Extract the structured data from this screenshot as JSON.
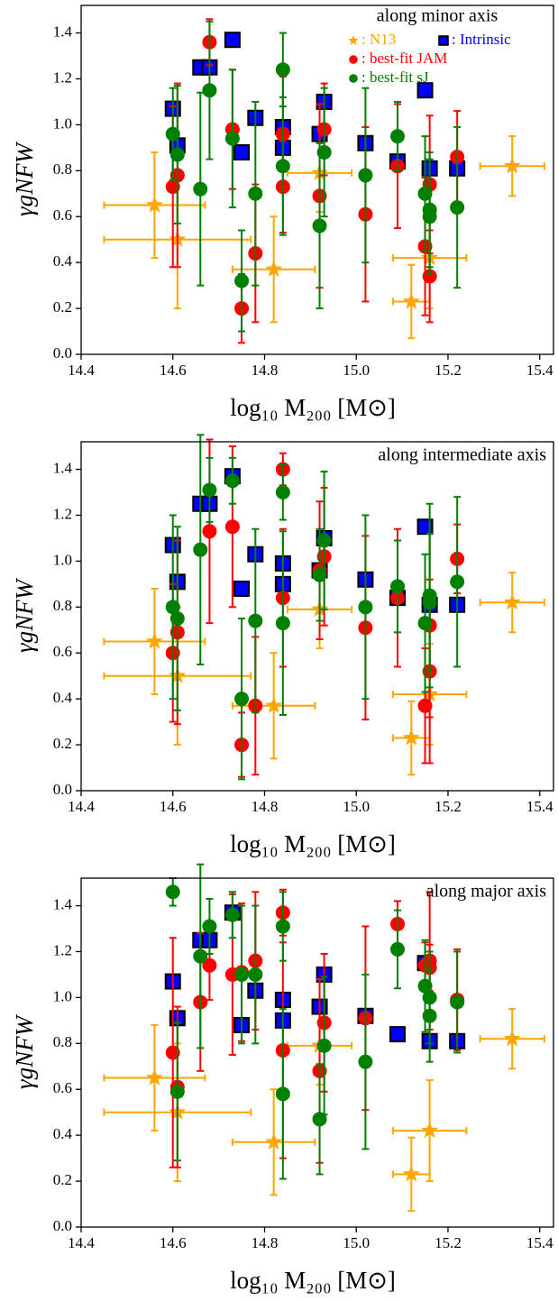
{
  "chart_data": [
    {
      "type": "scatter",
      "annotation": "along minor axis",
      "xlabel": "log₁₀ M₂₀₀ [M⊙]",
      "ylabel": "γgNFW",
      "xlim": [
        14.4,
        15.43
      ],
      "ylim": [
        0,
        1.52
      ],
      "xticks": [
        14.4,
        14.6,
        14.8,
        {
          "value": 15,
          "label": "15.0"
        },
        15.2,
        15.4
      ],
      "yticks": [
        {
          "value": 0,
          "label": "0.0"
        },
        0.2,
        0.4,
        0.6,
        0.8,
        {
          "value": 1,
          "label": "1.0"
        },
        1.2,
        1.4
      ],
      "legend": "upper right",
      "series": [
        {
          "name": ": N13",
          "color": "#ffa500",
          "marker": "star",
          "x": [
            14.56,
            14.61,
            14.82,
            14.92,
            15.12,
            15.16,
            15.34
          ],
          "values": [
            0.65,
            0.5,
            0.37,
            0.79,
            0.23,
            0.42,
            0.82
          ],
          "xerr": [
            0.11,
            0.16,
            0.09,
            0.07,
            0.04,
            0.08,
            0.07
          ],
          "yerr": [
            0.23,
            0.3,
            0.23,
            0.17,
            0.16,
            0.22,
            0.13
          ]
        },
        {
          "name": ": Intrinsic",
          "color": "#0000ff",
          "marker": "square",
          "x": [
            14.6,
            14.61,
            14.66,
            14.68,
            14.73,
            14.75,
            14.78,
            14.84,
            14.84,
            14.92,
            14.93,
            15.02,
            15.09,
            15.15,
            15.16,
            15.22
          ],
          "values": [
            1.07,
            0.91,
            1.25,
            1.25,
            1.37,
            0.88,
            1.03,
            0.9,
            0.99,
            0.96,
            1.1,
            0.92,
            0.84,
            1.15,
            0.81,
            0.81
          ]
        },
        {
          "name": ": best-fit JAM",
          "color": "#ff0000",
          "marker": "circle",
          "x": [
            14.6,
            14.61,
            14.68,
            14.73,
            14.75,
            14.78,
            14.84,
            14.84,
            14.92,
            14.93,
            15.02,
            15.09,
            15.15,
            15.16,
            15.16,
            15.22
          ],
          "values": [
            0.73,
            0.78,
            1.36,
            0.98,
            0.2,
            0.44,
            0.73,
            0.96,
            0.69,
            0.98,
            0.61,
            0.82,
            0.47,
            0.74,
            0.34,
            0.86
          ],
          "yerr": [
            0.35,
            0.4,
            0.1,
            0.26,
            0.15,
            0.3,
            0.2,
            0.25,
            0.4,
            0.2,
            0.38,
            0.27,
            0.3,
            0.3,
            0.2,
            0.2
          ]
        },
        {
          "name": ": best-fit sJ",
          "color": "#008000",
          "marker": "circle",
          "x": [
            14.6,
            14.61,
            14.66,
            14.68,
            14.73,
            14.75,
            14.78,
            14.84,
            14.84,
            14.92,
            14.93,
            15.02,
            15.09,
            15.15,
            15.16,
            15.16,
            15.22
          ],
          "values": [
            0.96,
            0.87,
            0.72,
            1.15,
            0.94,
            0.32,
            0.7,
            1.24,
            0.82,
            0.56,
            0.88,
            0.78,
            0.95,
            0.7,
            0.63,
            0.6,
            0.64
          ],
          "yerr": [
            0.2,
            0.3,
            0.42,
            0.3,
            0.3,
            0.22,
            0.4,
            0.16,
            0.3,
            0.36,
            0.28,
            0.38,
            0.15,
            0.25,
            0.25,
            0.25,
            0.35
          ]
        }
      ]
    },
    {
      "type": "scatter",
      "annotation": "along intermediate axis",
      "xlabel": "log₁₀ M₂₀₀ [M⊙]",
      "ylabel": "γgNFW",
      "xlim": [
        14.4,
        15.43
      ],
      "ylim": [
        0,
        1.52
      ],
      "xticks": [
        14.4,
        14.6,
        14.8,
        {
          "value": 15,
          "label": "15.0"
        },
        15.2,
        15.4
      ],
      "yticks": [
        {
          "value": 0,
          "label": "0.0"
        },
        0.2,
        0.4,
        0.6,
        0.8,
        {
          "value": 1,
          "label": "1.0"
        },
        1.2,
        1.4
      ],
      "series": [
        {
          "color": "#ffa500",
          "marker": "star",
          "x": [
            14.56,
            14.61,
            14.82,
            14.92,
            15.12,
            15.16,
            15.34
          ],
          "values": [
            0.65,
            0.5,
            0.37,
            0.79,
            0.23,
            0.42,
            0.82
          ],
          "xerr": [
            0.11,
            0.16,
            0.09,
            0.07,
            0.04,
            0.08,
            0.07
          ],
          "yerr": [
            0.23,
            0.3,
            0.23,
            0.17,
            0.16,
            0.22,
            0.13
          ]
        },
        {
          "color": "#0000ff",
          "marker": "square",
          "x": [
            14.6,
            14.61,
            14.66,
            14.68,
            14.73,
            14.75,
            14.78,
            14.84,
            14.84,
            14.92,
            14.93,
            15.02,
            15.09,
            15.15,
            15.16,
            15.22
          ],
          "values": [
            1.07,
            0.91,
            1.25,
            1.25,
            1.37,
            0.88,
            1.03,
            0.9,
            0.99,
            0.96,
            1.1,
            0.92,
            0.84,
            1.15,
            0.81,
            0.81
          ]
        },
        {
          "color": "#ff0000",
          "marker": "circle",
          "x": [
            14.6,
            14.61,
            14.68,
            14.73,
            14.75,
            14.78,
            14.84,
            14.84,
            14.92,
            14.93,
            15.02,
            15.09,
            15.15,
            15.16,
            15.16,
            15.22
          ],
          "values": [
            0.6,
            0.69,
            1.13,
            1.15,
            0.2,
            0.37,
            0.84,
            1.4,
            0.96,
            1.02,
            0.71,
            0.84,
            0.37,
            0.72,
            0.52,
            1.01
          ],
          "yerr": [
            0.3,
            0.4,
            0.4,
            0.35,
            0.14,
            0.3,
            0.3,
            0.07,
            0.3,
            0.3,
            0.4,
            0.3,
            0.25,
            0.4,
            0.4,
            0.15
          ]
        },
        {
          "color": "#008000",
          "marker": "circle",
          "x": [
            14.6,
            14.61,
            14.66,
            14.68,
            14.73,
            14.75,
            14.78,
            14.84,
            14.84,
            14.92,
            14.93,
            15.02,
            15.09,
            15.15,
            15.16,
            15.16,
            15.22
          ],
          "values": [
            0.8,
            0.75,
            1.05,
            1.31,
            1.35,
            0.4,
            0.74,
            1.3,
            0.73,
            0.94,
            1.09,
            0.8,
            0.89,
            0.73,
            0.85,
            0.82,
            0.91
          ],
          "yerr": [
            0.4,
            0.4,
            0.5,
            0.14,
            0.1,
            0.35,
            0.4,
            0.12,
            0.4,
            0.2,
            0.3,
            0.4,
            0.2,
            0.3,
            0.4,
            0.3,
            0.37
          ]
        }
      ]
    },
    {
      "type": "scatter",
      "annotation": "along major axis",
      "xlabel": "log₁₀ M₂₀₀ [M⊙]",
      "ylabel": "γgNFW",
      "xlim": [
        14.4,
        15.43
      ],
      "ylim": [
        0,
        1.52
      ],
      "xticks": [
        14.4,
        14.6,
        14.8,
        {
          "value": 15,
          "label": "15.0"
        },
        15.2,
        15.4
      ],
      "yticks": [
        {
          "value": 0,
          "label": "0.0"
        },
        0.2,
        0.4,
        0.6,
        0.8,
        {
          "value": 1,
          "label": "1.0"
        },
        1.2,
        1.4
      ],
      "series": [
        {
          "color": "#ffa500",
          "marker": "star",
          "x": [
            14.56,
            14.61,
            14.82,
            14.92,
            15.12,
            15.16,
            15.34
          ],
          "values": [
            0.65,
            0.5,
            0.37,
            0.79,
            0.23,
            0.42,
            0.82
          ],
          "xerr": [
            0.11,
            0.16,
            0.09,
            0.07,
            0.04,
            0.08,
            0.07
          ],
          "yerr": [
            0.23,
            0.3,
            0.23,
            0.17,
            0.16,
            0.22,
            0.13
          ]
        },
        {
          "color": "#0000ff",
          "marker": "square",
          "x": [
            14.6,
            14.61,
            14.66,
            14.68,
            14.73,
            14.75,
            14.78,
            14.84,
            14.84,
            14.92,
            14.93,
            15.02,
            15.09,
            15.15,
            15.16,
            15.22
          ],
          "values": [
            1.07,
            0.91,
            1.25,
            1.25,
            1.37,
            0.88,
            1.03,
            0.9,
            0.99,
            0.96,
            1.1,
            0.92,
            0.84,
            1.15,
            0.81,
            0.81
          ]
        },
        {
          "color": "#ff0000",
          "marker": "circle",
          "x": [
            14.6,
            14.61,
            14.66,
            14.68,
            14.73,
            14.75,
            14.78,
            14.84,
            14.84,
            14.92,
            14.93,
            15.02,
            15.09,
            15.15,
            15.16,
            15.16,
            15.22
          ],
          "values": [
            0.76,
            0.61,
            0.98,
            1.14,
            1.1,
            1.11,
            1.16,
            0.77,
            1.37,
            0.68,
            0.89,
            0.91,
            1.32,
            1.14,
            1.16,
            1.13,
            0.99
          ],
          "yerr": [
            0.5,
            0.35,
            0.3,
            0.15,
            0.35,
            0.3,
            0.3,
            0.47,
            0.1,
            0.4,
            0.3,
            0.4,
            0.1,
            0.1,
            0.3,
            0.1,
            0.22
          ]
        },
        {
          "color": "#008000",
          "marker": "circle",
          "x": [
            14.6,
            14.61,
            14.66,
            14.68,
            14.73,
            14.75,
            14.78,
            14.84,
            14.84,
            14.92,
            14.93,
            15.02,
            15.09,
            15.15,
            15.16,
            15.16,
            15.22
          ],
          "values": [
            1.46,
            0.59,
            1.18,
            1.31,
            1.36,
            1.1,
            1.1,
            1.31,
            0.58,
            0.47,
            0.79,
            0.72,
            1.21,
            1.05,
            1.0,
            0.92,
            0.98
          ],
          "yerr": [
            0.06,
            0.3,
            0.4,
            0.12,
            0.1,
            0.3,
            0.3,
            0.15,
            0.37,
            0.24,
            0.3,
            0.38,
            0.17,
            0.2,
            0.2,
            0.2,
            0.22
          ]
        }
      ]
    }
  ]
}
